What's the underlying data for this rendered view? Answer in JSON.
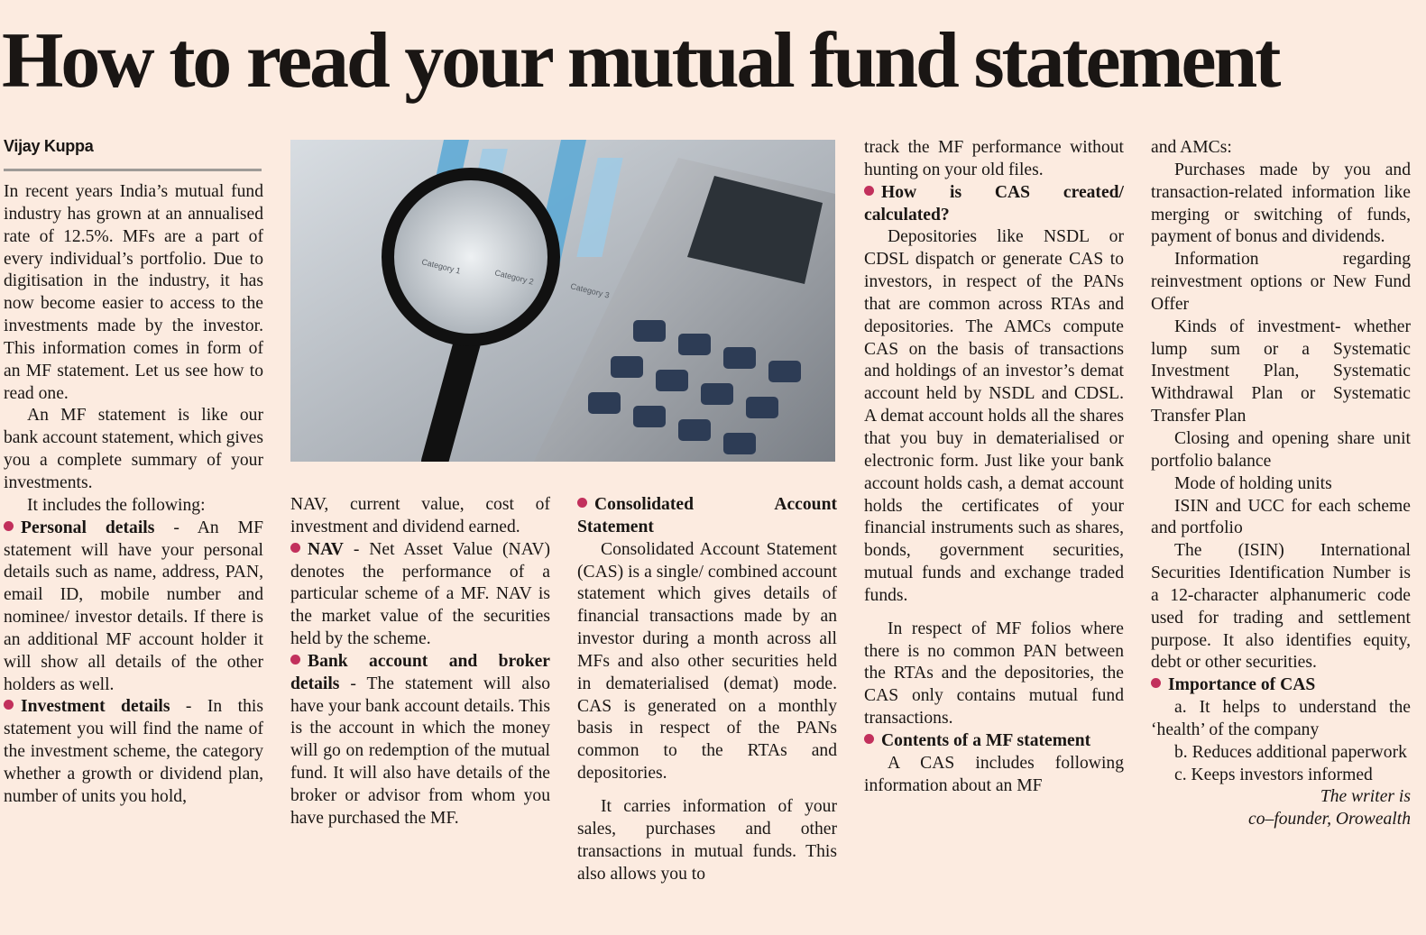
{
  "headline": "How to read your mutual fund statement",
  "byline": "Vijay Kuppa",
  "accent_color": "#c2305c",
  "photo": {
    "icon": "magnifier-calculator-chart-photo",
    "chart_labels": [
      "Category 1",
      "Category 2",
      "Category 3"
    ]
  },
  "col1": {
    "p1": "In recent years India’s mutual fund industry has grown at an annualised rate of 12.5%. MFs are a part of every individual’s portfolio. Due to digitisation in the industry, it has now become easier to access to the investments made by the investor. This information comes in form of an MF statement. Let us see how to read one.",
    "p2": "An MF statement is like our bank account statement, which gives you a complete summary of your investments.",
    "p3": "It includes the following:",
    "b1_head": "Personal details",
    "b1_text": " - An MF statement will have your personal details such as name, address, PAN, email ID, mobile number and nominee/ investor details. If there is an additional MF account holder it will show all details of the other holders as well.",
    "b2_head": "Investment details",
    "b2_text": " - In this statement you will find the name of the investment scheme, the category whether a growth or dividend plan, number of units you hold,"
  },
  "col2": {
    "cont": "NAV, current value, cost of investment and dividend earned.",
    "b1_head": "NAV",
    "b1_text": " - Net Asset Value (NAV) denotes the performance of a particular scheme of a MF. NAV is the market value of the securities held by the scheme.",
    "b2_head": "Bank account and broker details",
    "b2_text": " - The statement will also have your bank account details. This is the account in which the money will go on redemption of the mutual fund. It will also have details of the broker or advisor from whom you have purchased the MF."
  },
  "col3": {
    "head": "Consolidated Account Statement",
    "p1": "Consolidated Account Statement (CAS) is a single/ combined account statement which gives details of financial transactions made by an investor during a month across all MFs and also other securities held in dematerialised (demat) mode. CAS is generated on a monthly basis in respect of the PANs common to the RTAs and depositories.",
    "p2": "It carries information of your sales, purchases and other transactions in mutual funds. This also allows you to"
  },
  "col4": {
    "cont": "track the MF performance without hunting on your old files.",
    "h1": "How is CAS created/ calculated?",
    "p1": "Depositories like NSDL or CDSL dispatch or generate CAS to investors, in respect of the PANs that are common across RTAs and depositories. The AMCs compute CAS on the basis of transactions and holdings of an investor’s demat account held by NSDL and CDSL. A demat account holds all the shares that you buy in dematerialised or electronic form. Just like your bank account holds cash, a demat account holds the certificates of your financial instruments such as shares, bonds, government securities, mutual funds and exchange traded funds.",
    "p2": "In respect of MF folios where there is no common PAN between the RTAs and the depositories, the CAS only contains mutual fund transactions.",
    "h2": "Contents of a MF statement",
    "p3": "A CAS includes following information about an MF"
  },
  "col5": {
    "cont": "and AMCs:",
    "items": [
      "Purchases made by you and transaction-related information like merging or switching of funds, payment of bonus and dividends.",
      "Information regarding reinvestment options or New Fund Offer",
      "Kinds of investment- whether lump sum or a Systematic Investment Plan, Systematic Withdrawal Plan or Systematic Transfer Plan",
      "Closing and opening share unit portfolio balance",
      "Mode of holding units",
      "ISIN and UCC for each scheme and portfolio",
      "The (ISIN) International Securities Identification Number is a 12-character alphanumeric code used for trading and settlement purpose. It also identifies equity, debt or other securities."
    ],
    "h1": "Importance of CAS",
    "points": [
      "a. It helps to understand the ‘health’ of the company",
      "b. Reduces additional paperwork",
      "c. Keeps investors informed"
    ],
    "sig1": "The writer is",
    "sig2": "co–founder, Orowealth"
  }
}
